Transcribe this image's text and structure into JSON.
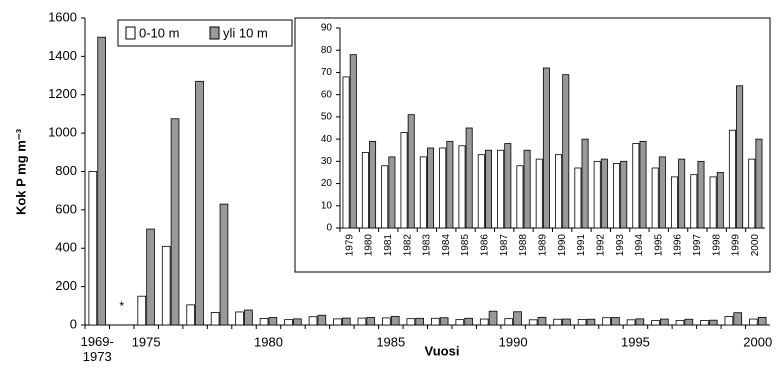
{
  "chart_data": [
    {
      "type": "bar",
      "y_label": "Kok P mg m⁻³",
      "x_label": "Vuosi",
      "annotation": "*",
      "categories": [
        "1969-1973",
        null,
        "1975",
        null,
        null,
        null,
        null,
        "1980",
        null,
        null,
        null,
        null,
        "1985",
        null,
        null,
        null,
        null,
        "1990",
        null,
        null,
        null,
        null,
        "1995",
        null,
        null,
        null,
        null,
        "2000"
      ],
      "series": [
        {
          "name": "0-10 m",
          "color": "#ffffff",
          "values": [
            800,
            null,
            150,
            410,
            105,
            65,
            68,
            34,
            28,
            43,
            32,
            36,
            37,
            33,
            35,
            28,
            31,
            33,
            27,
            30,
            29,
            38,
            27,
            23,
            24,
            23,
            44,
            31
          ]
        },
        {
          "name": "yli 10 m",
          "color": "#999999",
          "values": [
            1500,
            null,
            500,
            1075,
            1270,
            630,
            78,
            39,
            32,
            51,
            36,
            39,
            45,
            35,
            38,
            35,
            72,
            69,
            40,
            31,
            30,
            39,
            32,
            31,
            30,
            25,
            64,
            40
          ]
        }
      ],
      "ylim": [
        0,
        1600
      ],
      "yticks": [
        0,
        200,
        400,
        600,
        800,
        1000,
        1200,
        1400,
        1600
      ]
    },
    {
      "type": "bar",
      "categories": [
        "1979",
        "1980",
        "1981",
        "1982",
        "1983",
        "1984",
        "1985",
        "1986",
        "1987",
        "1988",
        "1989",
        "1990",
        "1991",
        "1992",
        "1993",
        "1994",
        "1995",
        "1996",
        "1997",
        "1998",
        "1999",
        "2000"
      ],
      "series": [
        {
          "name": "0-10 m",
          "color": "#ffffff",
          "values": [
            68,
            34,
            28,
            43,
            32,
            36,
            37,
            33,
            35,
            28,
            31,
            33,
            27,
            30,
            29,
            38,
            27,
            23,
            24,
            23,
            44,
            31
          ]
        },
        {
          "name": "yli 10 m",
          "color": "#999999",
          "values": [
            78,
            39,
            32,
            51,
            36,
            39,
            45,
            35,
            38,
            35,
            72,
            69,
            40,
            31,
            30,
            39,
            32,
            31,
            30,
            25,
            64,
            40
          ]
        }
      ],
      "ylim": [
        0,
        90
      ],
      "yticks": [
        0,
        10,
        20,
        30,
        40,
        50,
        60,
        70,
        80,
        90
      ]
    }
  ]
}
